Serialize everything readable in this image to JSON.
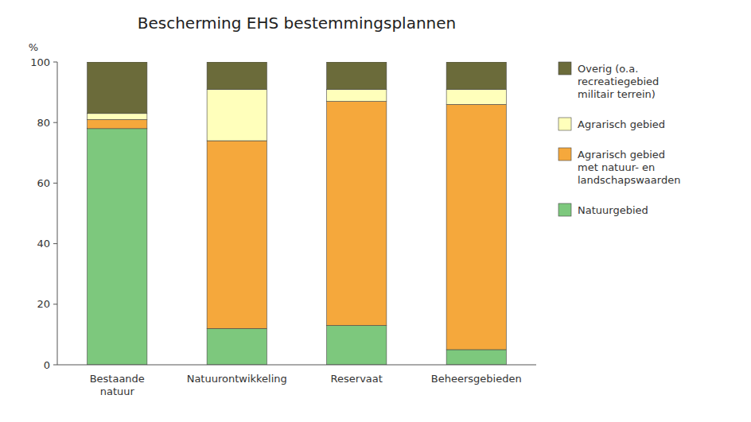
{
  "chart_data": {
    "type": "bar",
    "stacked": true,
    "title": "Bescherming EHS bestemmingsplannen",
    "ylabel": "%",
    "categories": [
      "Bestaande\nnatuur",
      "Natuurontwikkeling",
      "Reservaat",
      "Beheersgebieden"
    ],
    "series": [
      {
        "name": "Natuurgebied",
        "color": "#7DC87D",
        "values": [
          78,
          12,
          13,
          5
        ]
      },
      {
        "name": "Agrarisch gebied\nmet natuur- en\nlandschapswaarden",
        "color": "#F5A83C",
        "values": [
          3,
          62,
          74,
          81
        ]
      },
      {
        "name": "Agrarisch gebied",
        "color": "#FFFFBB",
        "values": [
          2,
          17,
          4,
          5
        ]
      },
      {
        "name": "Overig (o.a.\nrecreatiegebied\nmilitair terrein)",
        "color": "#6B6B3A",
        "values": [
          17,
          9,
          9,
          9
        ]
      }
    ],
    "ylim": [
      0,
      100
    ],
    "yticks": [
      0,
      20,
      40,
      60,
      80,
      100
    ],
    "grid": false,
    "legend": "right"
  }
}
